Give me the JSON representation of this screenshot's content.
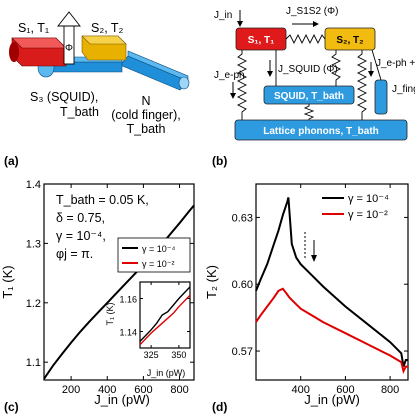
{
  "schematic_left": {
    "s1": "S₁, T₁",
    "s2": "S₂, T₂",
    "phi": "Φ",
    "s3_line1": "S₃ (SQUID),",
    "s3_line2": "T_bath",
    "n_line1": "N",
    "n_line2": "(cold finger),",
    "n_line3": "T_bath"
  },
  "schematic_right": {
    "s1_box": "S₁, T₁",
    "s2_box": "S₂, T₂",
    "squid_box": "SQUID, T_bath",
    "phonons_box": "Lattice phonons, T_bath",
    "j_in": "J_in",
    "j_s1s2": "J_S1S2 (Φ)",
    "j_eph_left": "J_e-ph",
    "j_squid": "J_SQUID (Φ)",
    "j_eph_right_1": "J_e-ph +",
    "j_eph_right_2": "J_finger"
  },
  "panels": {
    "a": "(a)",
    "b": "(b)",
    "c": "(c)",
    "d": "(d)"
  },
  "params": {
    "line1": "T_bath = 0.05 K,",
    "line2": "δ = 0.75,",
    "line3": "γ = 10⁻⁴,",
    "line4": "φj = π."
  },
  "chart_data": [
    {
      "type": "line",
      "panel": "(c)",
      "xlabel": "J_in (pW)",
      "ylabel": "T₁ (K)",
      "xlim": [
        50,
        880
      ],
      "ylim": [
        1.07,
        1.4
      ],
      "xticks": [
        200,
        400,
        600,
        800
      ],
      "yticks": [
        1.1,
        1.2,
        1.3,
        1.4
      ],
      "legend": "center-right",
      "series": [
        {
          "name": "γ = 10⁻⁴",
          "color": "#000000",
          "x": [
            50,
            100,
            150,
            200,
            250,
            300,
            350,
            400,
            450,
            500,
            550,
            600,
            650,
            700,
            750,
            800,
            850,
            880
          ],
          "y": [
            1.072,
            1.094,
            1.114,
            1.133,
            1.151,
            1.168,
            1.184,
            1.2,
            1.216,
            1.232,
            1.248,
            1.264,
            1.281,
            1.298,
            1.316,
            1.334,
            1.353,
            1.364
          ]
        },
        {
          "name": "γ = 10⁻²",
          "color": "#e00000",
          "x": [],
          "y": []
        }
      ]
    },
    {
      "type": "line",
      "panel": "(c) inset",
      "xlabel": "J_in (pW)",
      "ylabel": "T₁ (K)",
      "xlim": [
        315,
        360
      ],
      "ylim": [
        1.13,
        1.17
      ],
      "xticks": [
        325,
        350
      ],
      "yticks": [
        1.14,
        1.16
      ],
      "series": [
        {
          "name": "γ = 10⁻⁴",
          "color": "#000000",
          "x": [
            315,
            325,
            330,
            335,
            340,
            350,
            360
          ],
          "y": [
            1.134,
            1.141,
            1.145,
            1.15,
            1.152,
            1.16,
            1.167
          ]
        },
        {
          "name": "γ = 10⁻²",
          "color": "#e00000",
          "x": [
            315,
            325,
            335,
            345,
            350,
            360
          ],
          "y": [
            1.132,
            1.139,
            1.145,
            1.151,
            1.155,
            1.162
          ]
        }
      ]
    },
    {
      "type": "line",
      "panel": "(d)",
      "xlabel": "J_in (pW)",
      "ylabel": "T₂ (K)",
      "xlim": [
        200,
        880
      ],
      "ylim": [
        0.557,
        0.645
      ],
      "xticks": [
        400,
        600,
        800
      ],
      "yticks": [
        0.57,
        0.6,
        0.63
      ],
      "legend": "top-right",
      "series": [
        {
          "name": "γ = 10⁻⁴",
          "color": "#000000",
          "x": [
            200,
            220,
            250,
            280,
            300,
            320,
            340,
            345,
            360,
            380,
            400,
            450,
            500,
            600,
            700,
            800,
            850,
            860,
            870,
            880
          ],
          "y": [
            0.597,
            0.602,
            0.609,
            0.618,
            0.624,
            0.631,
            0.637,
            0.639,
            0.618,
            0.612,
            0.609,
            0.604,
            0.599,
            0.59,
            0.582,
            0.574,
            0.569,
            0.563,
            0.566,
            0.566
          ]
        },
        {
          "name": "γ = 10⁻²",
          "color": "#e00000",
          "x": [
            200,
            220,
            250,
            280,
            300,
            320,
            335,
            350,
            380,
            400,
            450,
            500,
            600,
            700,
            800,
            850,
            860,
            870,
            880
          ],
          "y": [
            0.583,
            0.586,
            0.59,
            0.594,
            0.597,
            0.598,
            0.596,
            0.594,
            0.591,
            0.589,
            0.586,
            0.583,
            0.578,
            0.573,
            0.568,
            0.565,
            0.561,
            0.563,
            0.563
          ]
        }
      ]
    }
  ]
}
